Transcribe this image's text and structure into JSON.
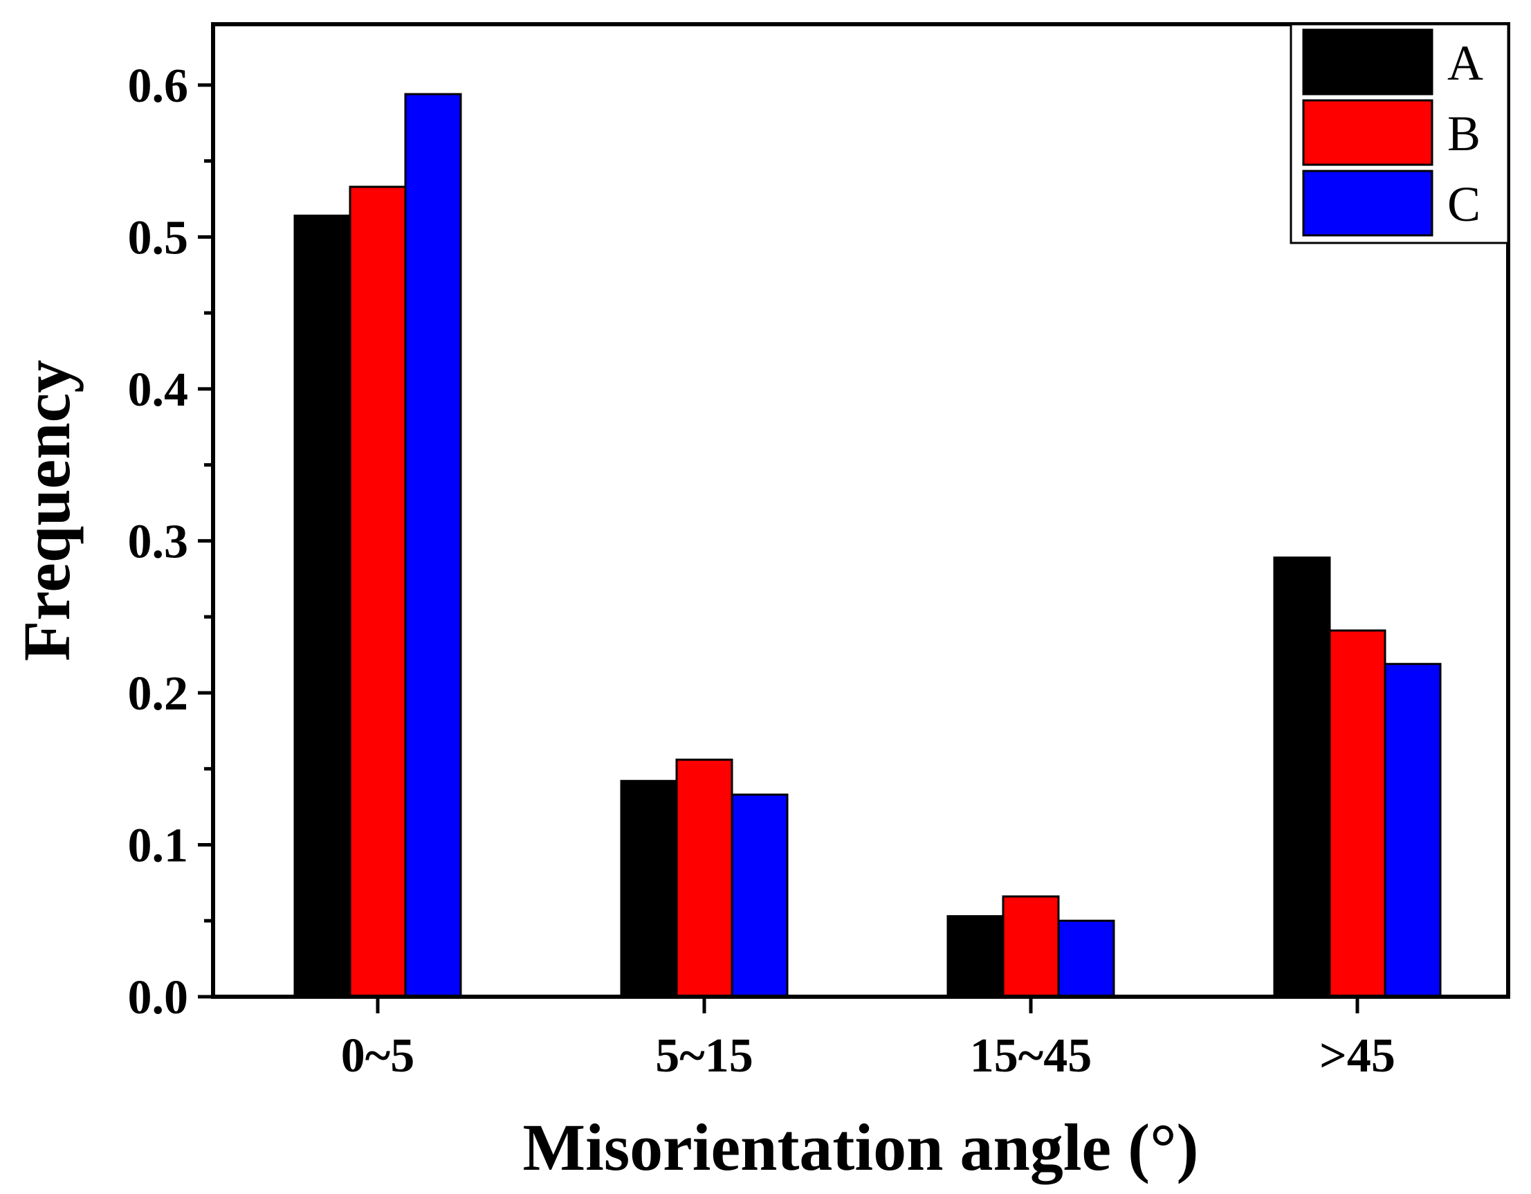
{
  "chart_data": {
    "type": "bar",
    "title": "",
    "xlabel": "Misorientation angle (°)",
    "ylabel": "Frequency",
    "categories": [
      "0~5",
      "5~15",
      "15~45",
      ">45"
    ],
    "series": [
      {
        "name": "A",
        "color": "#000000",
        "values": [
          0.514,
          0.142,
          0.053,
          0.289
        ]
      },
      {
        "name": "B",
        "color": "#ff0000",
        "values": [
          0.533,
          0.156,
          0.066,
          0.241
        ]
      },
      {
        "name": "C",
        "color": "#0000ff",
        "values": [
          0.594,
          0.133,
          0.05,
          0.219
        ]
      }
    ],
    "ylim": [
      0,
      0.64
    ],
    "yticks": [
      0.0,
      0.1,
      0.2,
      0.3,
      0.4,
      0.5,
      0.6
    ],
    "ytick_labels": [
      "0.0",
      "0.1",
      "0.2",
      "0.3",
      "0.4",
      "0.5",
      "0.6"
    ],
    "grid": false,
    "legend_position": "top-right"
  }
}
